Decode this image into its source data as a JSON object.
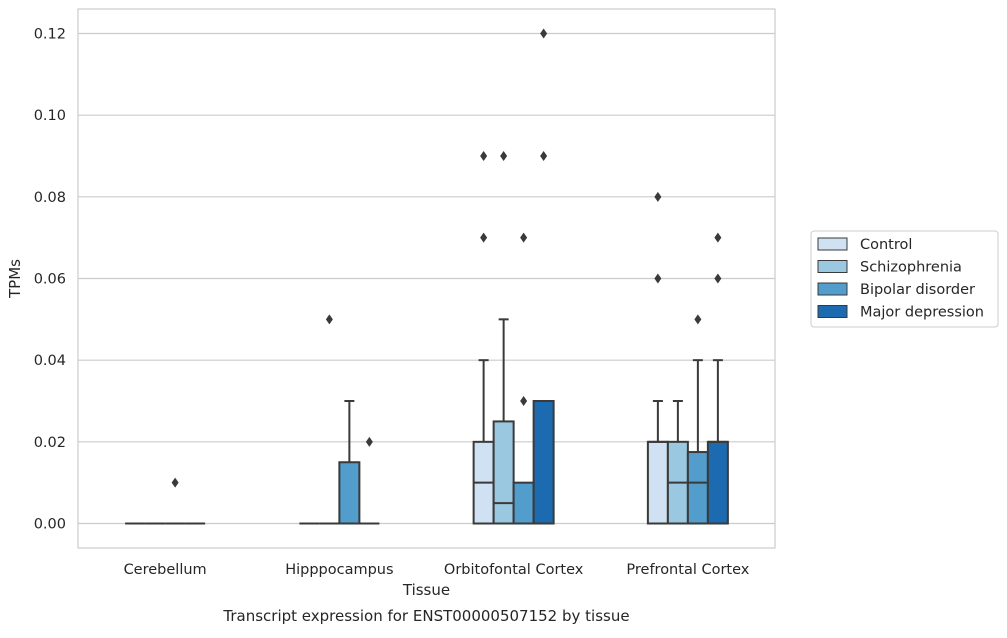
{
  "chart_data": {
    "type": "box",
    "title": "",
    "caption": "Transcript expression for ENST00000507152 by tissue",
    "xlabel": "Tissue",
    "ylabel": "TPMs",
    "ylim": [
      -0.006,
      0.126
    ],
    "yticks": [
      0.0,
      0.02,
      0.04,
      0.06,
      0.08,
      0.1,
      0.12
    ],
    "ytick_labels": [
      "0.00",
      "0.02",
      "0.04",
      "0.06",
      "0.08",
      "0.10",
      "0.12"
    ],
    "grid": "horizontal",
    "legend_position": "right",
    "categories": [
      "Cerebellum",
      "Hipppocampus",
      "Orbitofontal Cortex",
      "Prefrontal Cortex"
    ],
    "series": [
      {
        "name": "Control",
        "color": "#cfe1f2",
        "boxes": [
          {
            "q1": 0,
            "median": 0,
            "q3": 0,
            "whisker_low": 0,
            "whisker_high": 0,
            "outliers": []
          },
          {
            "q1": 0,
            "median": 0,
            "q3": 0,
            "whisker_low": 0,
            "whisker_high": 0,
            "outliers": []
          },
          {
            "q1": 0,
            "median": 0.01,
            "q3": 0.02,
            "whisker_low": 0,
            "whisker_high": 0.04,
            "outliers": [
              0.07,
              0.09
            ]
          },
          {
            "q1": 0,
            "median": 0.02,
            "q3": 0.02,
            "whisker_low": 0,
            "whisker_high": 0.03,
            "outliers": [
              0.06,
              0.08
            ]
          }
        ]
      },
      {
        "name": "Schizophrenia",
        "color": "#9ac8e0",
        "boxes": [
          {
            "q1": 0,
            "median": 0,
            "q3": 0,
            "whisker_low": 0,
            "whisker_high": 0,
            "outliers": []
          },
          {
            "q1": 0,
            "median": 0,
            "q3": 0,
            "whisker_low": 0,
            "whisker_high": 0,
            "outliers": [
              0.05
            ]
          },
          {
            "q1": 0,
            "median": 0.005,
            "q3": 0.025,
            "whisker_low": 0,
            "whisker_high": 0.05,
            "outliers": [
              0.09
            ]
          },
          {
            "q1": 0,
            "median": 0.01,
            "q3": 0.02,
            "whisker_low": 0,
            "whisker_high": 0.03,
            "outliers": []
          }
        ]
      },
      {
        "name": "Bipolar disorder",
        "color": "#529dcc",
        "boxes": [
          {
            "q1": 0,
            "median": 0,
            "q3": 0,
            "whisker_low": 0,
            "whisker_high": 0,
            "outliers": [
              0.01
            ]
          },
          {
            "q1": 0,
            "median": 0,
            "q3": 0.015,
            "whisker_low": 0,
            "whisker_high": 0.03,
            "outliers": []
          },
          {
            "q1": 0,
            "median": 0,
            "q3": 0.01,
            "whisker_low": 0,
            "whisker_high": 0.01,
            "outliers": [
              0.03,
              0.07
            ]
          },
          {
            "q1": 0,
            "median": 0.01,
            "q3": 0.0175,
            "whisker_low": 0,
            "whisker_high": 0.04,
            "outliers": [
              0.05
            ]
          }
        ]
      },
      {
        "name": "Major depression",
        "color": "#1c6aaf",
        "boxes": [
          {
            "q1": 0,
            "median": 0,
            "q3": 0,
            "whisker_low": 0,
            "whisker_high": 0,
            "outliers": []
          },
          {
            "q1": 0,
            "median": 0,
            "q3": 0,
            "whisker_low": 0,
            "whisker_high": 0,
            "outliers": [
              0.02
            ]
          },
          {
            "q1": 0,
            "median": 0,
            "q3": 0.03,
            "whisker_low": 0,
            "whisker_high": 0.03,
            "outliers": [
              0.09,
              0.12
            ]
          },
          {
            "q1": 0,
            "median": 0.02,
            "q3": 0.02,
            "whisker_low": 0,
            "whisker_high": 0.04,
            "outliers": [
              0.06,
              0.07
            ]
          }
        ]
      }
    ]
  }
}
